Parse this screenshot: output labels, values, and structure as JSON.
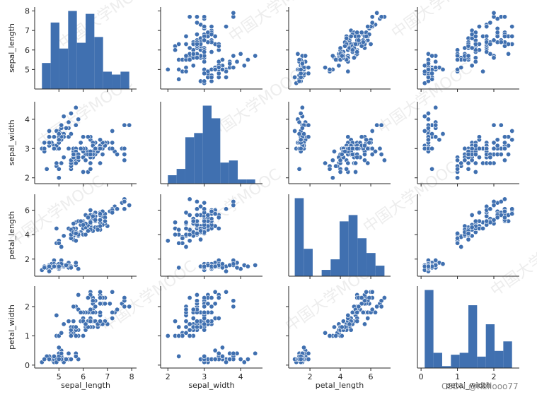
{
  "chart_data": {
    "type": "pairplot",
    "variables": [
      "sepal_length",
      "sepal_width",
      "petal_length",
      "petal_width"
    ],
    "axis_titles": [
      "sepal_length",
      "sepal_width",
      "petal_length",
      "petal_width"
    ],
    "color": "#4070b0",
    "ranges": {
      "sepal_length": [
        4.0,
        8.2
      ],
      "sepal_width": [
        1.8,
        4.6
      ],
      "petal_length": [
        0.6,
        7.3
      ],
      "petal_width": [
        -0.1,
        2.7
      ]
    },
    "ticks": {
      "sepal_length": [
        5,
        6,
        7,
        8
      ],
      "sepal_width": [
        2,
        3,
        4
      ],
      "petal_length": [
        2,
        4,
        6
      ],
      "petal_width": [
        0,
        1,
        2
      ]
    },
    "histograms": {
      "sepal_length": {
        "edges": [
          4.3,
          4.66,
          5.02,
          5.38,
          5.74,
          6.1,
          6.46,
          6.82,
          7.18,
          7.54,
          7.9
        ],
        "counts": [
          9,
          23,
          14,
          27,
          16,
          26,
          18,
          6,
          5,
          6
        ]
      },
      "sepal_width": {
        "edges": [
          2.0,
          2.24,
          2.48,
          2.72,
          2.96,
          3.2,
          3.44,
          3.68,
          3.92,
          4.16,
          4.4
        ],
        "counts": [
          4,
          7,
          22,
          24,
          37,
          31,
          10,
          11,
          2,
          2
        ]
      },
      "petal_length": {
        "edges": [
          1.0,
          1.59,
          2.18,
          2.77,
          3.36,
          3.95,
          4.54,
          5.13,
          5.72,
          6.31,
          6.9
        ],
        "counts": [
          37,
          13,
          0,
          3,
          8,
          26,
          29,
          18,
          11,
          5
        ]
      },
      "petal_width": {
        "edges": [
          0.1,
          0.34,
          0.58,
          0.82,
          1.06,
          1.3,
          1.54,
          1.78,
          2.02,
          2.26,
          2.5
        ],
        "counts": [
          41,
          8,
          1,
          7,
          8,
          33,
          6,
          23,
          9,
          14
        ]
      }
    },
    "samples": {
      "sepal_length": [
        5.1,
        4.9,
        4.7,
        4.6,
        5.0,
        5.4,
        4.6,
        5.0,
        4.4,
        4.9,
        5.4,
        4.8,
        4.8,
        4.3,
        5.8,
        5.7,
        5.4,
        5.1,
        5.7,
        5.1,
        5.4,
        5.1,
        4.6,
        5.1,
        4.8,
        5.0,
        5.0,
        5.2,
        5.2,
        4.7,
        4.8,
        5.4,
        5.2,
        5.5,
        4.9,
        5.0,
        5.5,
        4.9,
        4.4,
        5.1,
        5.0,
        4.5,
        4.4,
        5.0,
        5.1,
        4.8,
        5.1,
        4.6,
        5.3,
        5.0,
        7.0,
        6.4,
        6.9,
        5.5,
        6.5,
        5.7,
        6.3,
        4.9,
        6.6,
        5.2,
        5.0,
        5.9,
        6.0,
        6.1,
        5.6,
        6.7,
        5.6,
        5.8,
        6.2,
        5.6,
        5.9,
        6.1,
        6.3,
        6.1,
        6.4,
        6.6,
        6.8,
        6.7,
        6.0,
        5.7,
        5.5,
        5.5,
        5.8,
        6.0,
        5.4,
        6.0,
        6.7,
        6.3,
        5.6,
        5.5,
        5.5,
        6.1,
        5.8,
        5.0,
        5.6,
        5.7,
        5.7,
        6.2,
        5.1,
        5.7,
        6.3,
        5.8,
        7.1,
        6.3,
        6.5,
        7.6,
        4.9,
        7.3,
        6.7,
        7.2,
        6.5,
        6.4,
        6.8,
        5.7,
        5.8,
        6.4,
        6.5,
        7.7,
        7.7,
        6.0,
        6.9,
        5.6,
        7.7,
        6.3,
        6.7,
        7.2,
        6.2,
        6.1,
        6.4,
        7.2,
        7.4,
        7.9,
        6.4,
        6.3,
        6.1,
        7.7,
        6.3,
        6.4,
        6.0,
        6.9,
        6.7,
        6.9,
        5.8,
        6.8,
        6.7,
        6.7,
        6.3,
        6.5,
        6.2,
        5.9
      ],
      "sepal_width": [
        3.5,
        3.0,
        3.2,
        3.1,
        3.6,
        3.9,
        3.4,
        3.4,
        2.9,
        3.1,
        3.7,
        3.4,
        3.0,
        3.0,
        4.0,
        4.4,
        3.9,
        3.5,
        3.8,
        3.8,
        3.4,
        3.7,
        3.6,
        3.3,
        3.4,
        3.0,
        3.4,
        3.5,
        3.4,
        3.2,
        3.1,
        3.4,
        4.1,
        4.2,
        3.1,
        3.2,
        3.5,
        3.6,
        3.0,
        3.4,
        3.5,
        2.3,
        3.2,
        3.5,
        3.8,
        3.0,
        3.8,
        3.2,
        3.7,
        3.3,
        3.2,
        3.2,
        3.1,
        2.3,
        2.8,
        2.8,
        3.3,
        2.4,
        2.9,
        2.7,
        2.0,
        3.0,
        2.2,
        2.9,
        2.9,
        3.1,
        3.0,
        2.7,
        2.2,
        2.5,
        3.2,
        2.8,
        2.5,
        2.8,
        2.9,
        3.0,
        2.8,
        3.0,
        2.9,
        2.6,
        2.4,
        2.4,
        2.7,
        2.7,
        3.0,
        3.4,
        3.1,
        2.3,
        3.0,
        2.5,
        2.6,
        3.0,
        2.6,
        2.3,
        2.7,
        3.0,
        2.9,
        2.9,
        2.5,
        2.8,
        3.3,
        2.7,
        3.0,
        2.9,
        3.0,
        3.0,
        2.5,
        2.9,
        2.5,
        3.6,
        3.2,
        2.7,
        3.0,
        2.5,
        2.8,
        3.2,
        3.0,
        3.8,
        2.6,
        2.2,
        3.2,
        2.8,
        2.8,
        2.7,
        3.3,
        3.2,
        2.8,
        3.0,
        2.8,
        3.0,
        2.8,
        3.8,
        2.8,
        2.8,
        2.6,
        3.0,
        3.4,
        3.1,
        3.0,
        3.1,
        3.1,
        3.1,
        2.7,
        3.2,
        3.3,
        3.0,
        2.5,
        3.0,
        3.4,
        3.0
      ],
      "petal_length": [
        1.4,
        1.4,
        1.3,
        1.5,
        1.4,
        1.7,
        1.4,
        1.5,
        1.4,
        1.5,
        1.5,
        1.6,
        1.4,
        1.1,
        1.2,
        1.5,
        1.3,
        1.4,
        1.7,
        1.5,
        1.7,
        1.5,
        1.0,
        1.7,
        1.9,
        1.6,
        1.6,
        1.5,
        1.4,
        1.6,
        1.6,
        1.5,
        1.5,
        1.4,
        1.5,
        1.2,
        1.3,
        1.4,
        1.3,
        1.5,
        1.3,
        1.3,
        1.3,
        1.6,
        1.9,
        1.4,
        1.6,
        1.4,
        1.5,
        1.4,
        4.7,
        4.5,
        4.9,
        4.0,
        4.6,
        4.5,
        4.7,
        3.3,
        4.6,
        3.9,
        3.5,
        4.2,
        4.0,
        4.7,
        3.6,
        4.4,
        4.5,
        4.1,
        4.5,
        3.9,
        4.8,
        4.0,
        4.9,
        4.7,
        4.3,
        4.4,
        4.8,
        5.0,
        4.5,
        3.5,
        3.8,
        3.7,
        3.9,
        5.1,
        4.5,
        4.5,
        4.7,
        4.4,
        4.1,
        4.0,
        4.4,
        4.6,
        4.0,
        3.3,
        4.2,
        4.2,
        4.2,
        4.3,
        3.0,
        4.1,
        6.0,
        5.1,
        5.9,
        5.6,
        5.8,
        6.6,
        4.5,
        6.3,
        5.8,
        6.1,
        5.1,
        5.3,
        5.5,
        5.0,
        5.1,
        5.3,
        5.5,
        6.7,
        6.9,
        5.0,
        5.7,
        4.9,
        6.7,
        4.9,
        5.7,
        6.0,
        4.8,
        4.9,
        5.6,
        5.8,
        6.1,
        6.4,
        5.6,
        5.1,
        5.6,
        6.1,
        5.6,
        5.5,
        4.8,
        5.4,
        5.6,
        5.1,
        5.1,
        5.9,
        5.7,
        5.2,
        5.0,
        5.2,
        5.4,
        5.1
      ],
      "petal_width": [
        0.2,
        0.2,
        0.2,
        0.2,
        0.2,
        0.4,
        0.3,
        0.2,
        0.2,
        0.1,
        0.2,
        0.2,
        0.1,
        0.1,
        0.2,
        0.4,
        0.4,
        0.3,
        0.3,
        0.3,
        0.2,
        0.4,
        0.2,
        0.5,
        0.2,
        0.2,
        0.4,
        0.2,
        0.2,
        0.2,
        0.2,
        0.4,
        0.1,
        0.2,
        0.2,
        0.2,
        0.2,
        0.1,
        0.2,
        0.2,
        0.3,
        0.3,
        0.2,
        0.6,
        0.4,
        0.3,
        0.2,
        0.2,
        0.2,
        0.2,
        1.4,
        1.5,
        1.5,
        1.3,
        1.5,
        1.3,
        1.6,
        1.0,
        1.3,
        1.4,
        1.0,
        1.5,
        1.0,
        1.4,
        1.3,
        1.4,
        1.5,
        1.0,
        1.5,
        1.1,
        1.8,
        1.3,
        1.5,
        1.2,
        1.3,
        1.4,
        1.4,
        1.7,
        1.5,
        1.0,
        1.1,
        1.0,
        1.2,
        1.6,
        1.5,
        1.6,
        1.5,
        1.3,
        1.3,
        1.3,
        1.2,
        1.4,
        1.2,
        1.0,
        1.3,
        1.2,
        1.3,
        1.3,
        1.1,
        1.3,
        2.5,
        1.9,
        2.1,
        1.8,
        2.2,
        2.1,
        1.7,
        1.8,
        1.8,
        2.5,
        2.0,
        1.9,
        2.1,
        2.0,
        2.4,
        2.3,
        1.8,
        2.2,
        2.3,
        1.5,
        2.3,
        2.0,
        2.0,
        1.8,
        2.1,
        1.8,
        1.8,
        1.8,
        2.1,
        1.6,
        1.9,
        2.0,
        2.2,
        1.5,
        1.4,
        2.3,
        2.4,
        1.8,
        1.8,
        2.1,
        2.4,
        2.3,
        1.9,
        2.3,
        2.5,
        2.3,
        1.9,
        2.0,
        2.3,
        1.8
      ]
    }
  },
  "watermark_text": "中国大学MOOC",
  "credit_text": "CSDN @Kellooo77"
}
